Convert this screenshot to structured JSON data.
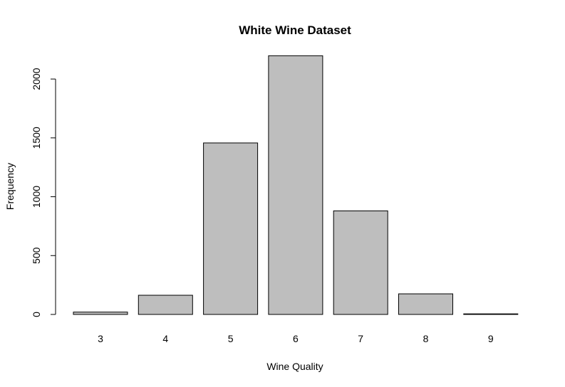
{
  "chart_data": {
    "type": "bar",
    "title": "White Wine Dataset",
    "xlabel": "Wine Quality",
    "ylabel": "Frequency",
    "categories": [
      "3",
      "4",
      "5",
      "6",
      "7",
      "8",
      "9"
    ],
    "values": [
      20,
      163,
      1457,
      2198,
      880,
      175,
      5
    ],
    "ylim": [
      0,
      2200
    ],
    "yticks": [
      "0",
      "500",
      "1000",
      "1500",
      "2000"
    ],
    "ytick_values": [
      0,
      500,
      1000,
      1500,
      2000
    ],
    "grid": false,
    "bar_color": "#bebebe",
    "edge_color": "#000000"
  }
}
